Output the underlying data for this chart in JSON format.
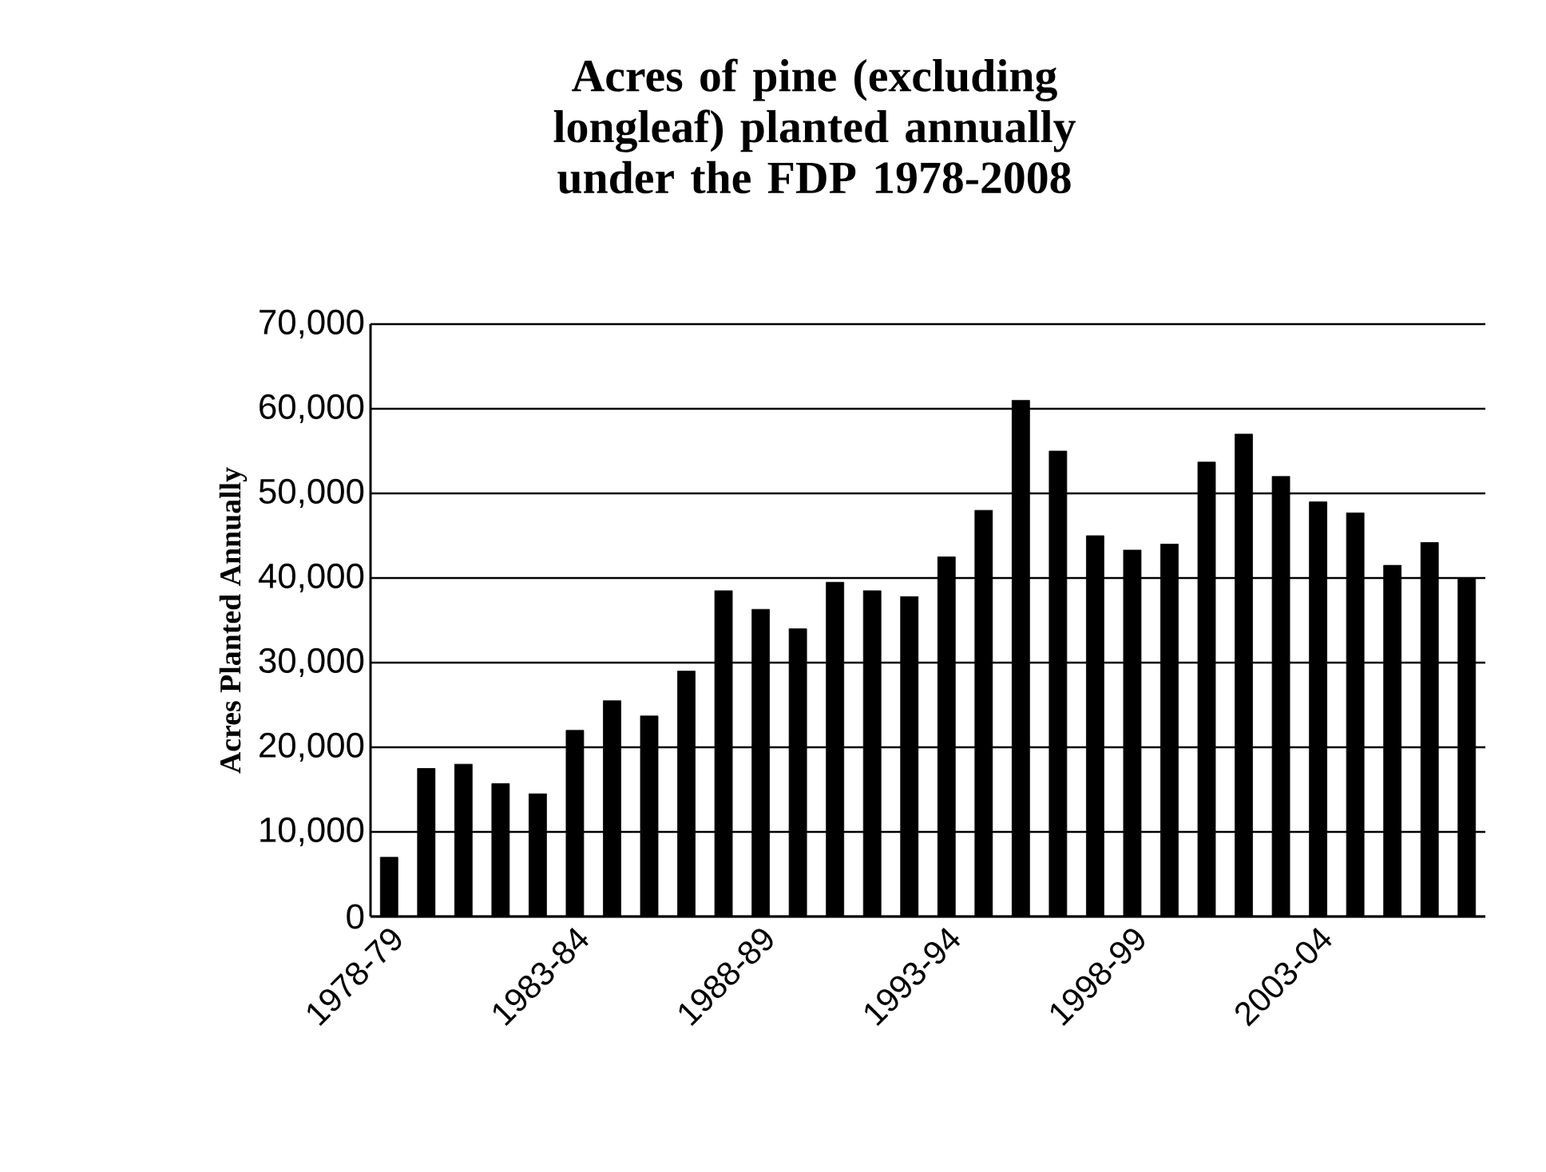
{
  "chart_data": {
    "type": "bar",
    "title": "Acres of pine (excluding longleaf) planted annually under the FDP 1978-2008",
    "ylabel": "Acres Planted Annually",
    "categories": [
      "1978-79",
      null,
      null,
      null,
      null,
      "1983-84",
      null,
      null,
      null,
      null,
      "1988-89",
      null,
      null,
      null,
      null,
      "1993-94",
      null,
      null,
      null,
      null,
      "1998-99",
      null,
      null,
      null,
      null,
      "2003-04",
      null,
      null,
      null,
      null
    ],
    "values": [
      7000,
      17500,
      18000,
      15700,
      14500,
      22000,
      25500,
      23700,
      29000,
      38500,
      36300,
      34000,
      39500,
      38500,
      37800,
      42500,
      48000,
      61000,
      55000,
      45000,
      43300,
      44000,
      53700,
      57000,
      52000,
      49000,
      47700,
      41500,
      44200,
      40000
    ],
    "color": "#000000",
    "ylim": [
      0,
      70000
    ],
    "yticks": [
      {
        "value": 0,
        "label": "0"
      },
      {
        "value": 10000,
        "label": "10,000"
      },
      {
        "value": 20000,
        "label": "20,000"
      },
      {
        "value": 30000,
        "label": "30,000"
      },
      {
        "value": 40000,
        "label": "40,000"
      },
      {
        "value": 50000,
        "label": "50,000"
      },
      {
        "value": 60000,
        "label": "60,000"
      },
      {
        "value": 70000,
        "label": "70,000"
      }
    ],
    "grid": "y"
  }
}
